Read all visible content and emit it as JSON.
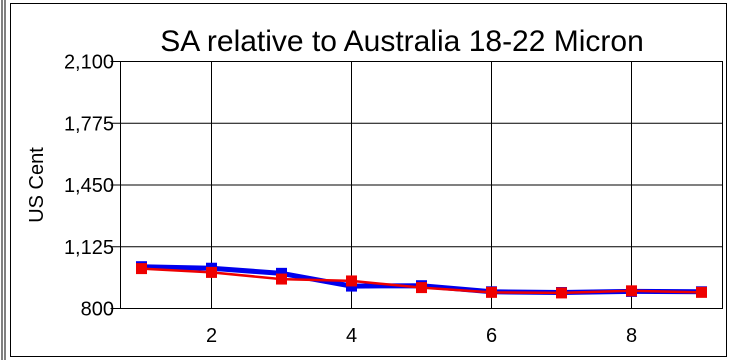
{
  "chart_data": {
    "type": "line",
    "title": "SA relative to Australia 18-22 Micron",
    "xlabel": "",
    "ylabel": "US Cent",
    "xlim": [
      0.7,
      9.3
    ],
    "ylim": [
      800,
      2100
    ],
    "xticks": [
      2,
      4,
      6,
      8
    ],
    "yticks": [
      800,
      1125,
      1450,
      1775,
      2100
    ],
    "ytick_labels": [
      "800",
      "1,125",
      "1,450",
      "1,775",
      "2,100"
    ],
    "grid": true,
    "legend": "none",
    "x": [
      1,
      2,
      3,
      4,
      5,
      6,
      7,
      8,
      9
    ],
    "series": [
      {
        "color": "#0000ee",
        "marker": "square",
        "values": [
          1020,
          1012,
          985,
          918,
          920,
          888,
          884,
          890,
          888
        ]
      },
      {
        "color": "#ee0000",
        "marker": "square",
        "values": [
          1010,
          990,
          955,
          945,
          910,
          885,
          882,
          893,
          885
        ]
      }
    ]
  }
}
